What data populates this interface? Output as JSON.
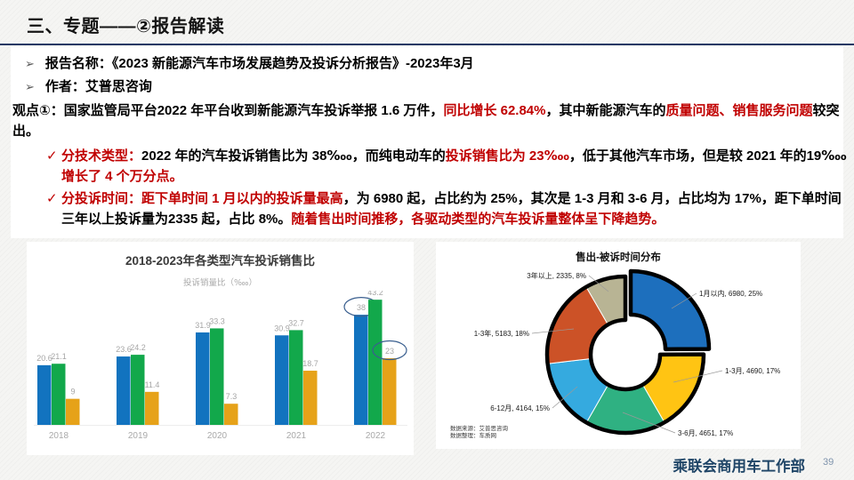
{
  "slide": {
    "title": "三、专题——②报告解读",
    "footer": {
      "department": "乘联会商用车工作部",
      "page_number": "39"
    }
  },
  "icons": {
    "bullet_arrow": "➢",
    "check": "✓"
  },
  "colors": {
    "accent_red": "#C00000",
    "divider_navy": "#1F3864",
    "footer_navy": "#1F4567",
    "page_number_blue": "#7E93AC",
    "annotation_ellipse": "#3A5F8F"
  },
  "bullets": [
    {
      "label": "报告名称：",
      "text": "《2023 新能源汽车市场发展趋势及投诉分析报告》-2023年3月"
    },
    {
      "label": "作者：",
      "text": "艾普思咨询"
    }
  ],
  "viewpoint": {
    "segments": [
      {
        "text": "观点①：国家监管局平台2022 年平台收到新能源汽车投诉举报 1.6 万件，",
        "red": false
      },
      {
        "text": "同比增长 62.84%",
        "red": true
      },
      {
        "text": "，其中新能源汽车的",
        "red": false
      },
      {
        "text": "质量问题、销售服务问题",
        "red": true
      },
      {
        "text": "较突出。",
        "red": false
      }
    ]
  },
  "sub_points": [
    {
      "segments": [
        {
          "text": "分技术类型：",
          "red": true
        },
        {
          "text": "2022 年的汽车投诉销售比为 38‱，而纯电动车的",
          "red": false
        },
        {
          "text": "投诉销售比为 23‱",
          "red": true
        },
        {
          "text": "，低于其他汽车市场，但是较 2021 年的19‱ ",
          "red": false
        },
        {
          "text": "增长了 4 个万分点。",
          "red": true
        }
      ]
    },
    {
      "segments": [
        {
          "text": "分投诉时间：距下单时间 1 月以内的投诉量最高",
          "red": true
        },
        {
          "text": "，为 6980 起，占比约为 25%，其次是 1-3 月和 3-6 月，占比均为 17%，距下单时间三年以上投诉量为2335 起，占比 8%。",
          "red": false
        },
        {
          "text": "随着售出时间推移，各驱动类型的汽车投诉量整体呈下降趋势。",
          "red": true
        }
      ]
    }
  ],
  "chart_data": [
    {
      "id": "complaint-sales-ratio-bar",
      "type": "bar",
      "title": "2018-2023年各类型汽车投诉销售比",
      "subtitle": "投诉销量比（‱）",
      "categories": [
        "2018",
        "2019",
        "2020",
        "2021",
        "2022"
      ],
      "series": [
        {
          "name": "series-blue",
          "color": "#1273BF",
          "values": [
            20.6,
            23.6,
            31.9,
            30.9,
            38
          ]
        },
        {
          "name": "series-green",
          "color": "#12A84B",
          "values": [
            21.1,
            24.2,
            33.3,
            32.7,
            43.2
          ]
        },
        {
          "name": "series-orange",
          "color": "#E6A219",
          "values": [
            9,
            11.4,
            7.3,
            18.7,
            23
          ]
        }
      ],
      "ylim": [
        0,
        45
      ],
      "value_labels": true,
      "grid": false,
      "legend": "none",
      "annotations": [
        {
          "series_index": 0,
          "category_index": 4,
          "label": "38",
          "shape": "ellipse"
        },
        {
          "series_index": 2,
          "category_index": 4,
          "label": "23",
          "shape": "ellipse"
        }
      ]
    },
    {
      "id": "sold-to-complaint-time-donut",
      "type": "pie",
      "title": "售出-被诉时间分布",
      "slices": [
        {
          "label": "1月以内",
          "value": 6980,
          "pct": "25%",
          "color": "#1D6FBD",
          "exploded": true
        },
        {
          "label": "1-3月",
          "value": 4690,
          "pct": "17%",
          "color": "#FFC413",
          "exploded": false
        },
        {
          "label": "3-6月",
          "value": 4651,
          "pct": "17%",
          "color": "#2FB182",
          "exploded": false
        },
        {
          "label": "6-12月",
          "value": 4164,
          "pct": "15%",
          "color": "#35AADF",
          "exploded": false
        },
        {
          "label": "1-3年",
          "value": 5183,
          "pct": "18%",
          "color": "#CC5227",
          "exploded": false
        },
        {
          "label": "3年以上",
          "value": 2335,
          "pct": "8%",
          "color": "#B8B494",
          "exploded": false
        }
      ],
      "source_note_line1": "数据来源：艾普思咨询",
      "source_note_line2": "数据整理：车质网"
    }
  ]
}
